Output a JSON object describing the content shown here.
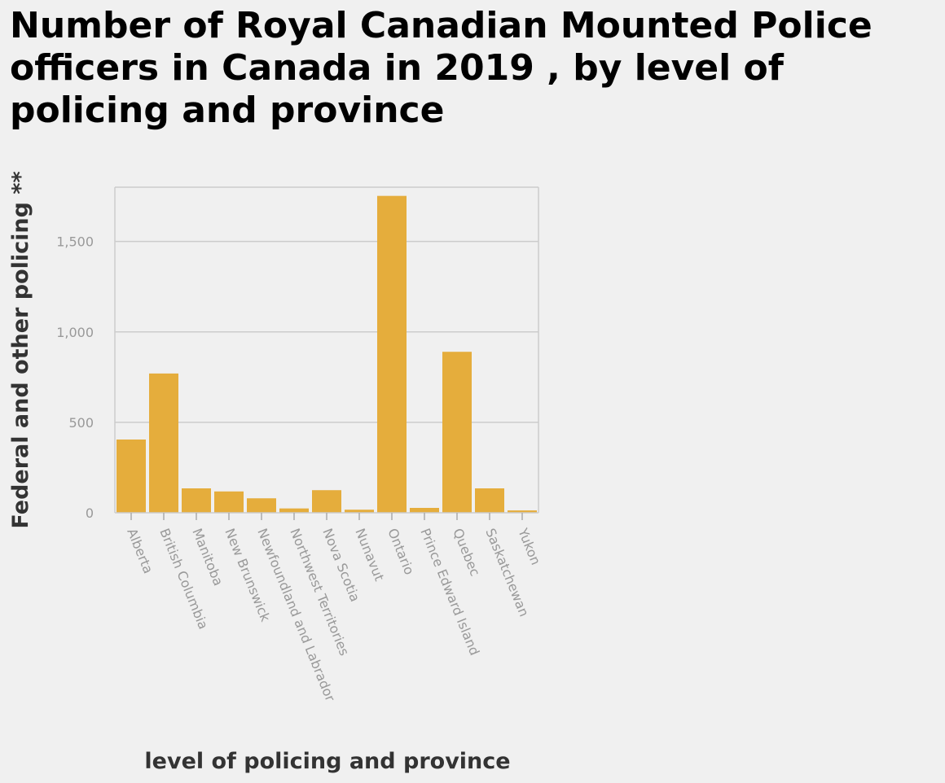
{
  "chart_data": {
    "type": "bar",
    "title": "Number of Royal Canadian Mounted Police officers in Canada in 2019 , by level of policing and province",
    "xlabel": "level of policing and province",
    "ylabel": "Federal and other policing **",
    "categories": [
      "Alberta",
      "British Columbia",
      "Manitoba",
      "New Brunswick",
      "Newfoundland and Labrador",
      "Northwest Territories",
      "Nova Scotia",
      "Nunavut",
      "Ontario",
      "Prince Edward Island",
      "Quebec",
      "Saskatchewan",
      "Yukon"
    ],
    "values": [
      405,
      770,
      135,
      118,
      80,
      24,
      125,
      17,
      1752,
      27,
      890,
      135,
      13
    ],
    "ylim": [
      0,
      1800
    ],
    "yticks": [
      0,
      500,
      1000,
      1500
    ],
    "ytick_labels": [
      "0",
      "500",
      "1,000",
      "1,500"
    ],
    "grid": true,
    "legend": "none",
    "colors": {
      "bar": "#e5ad3c",
      "grid": "#cccccc",
      "background": "#f0f0f0"
    }
  }
}
